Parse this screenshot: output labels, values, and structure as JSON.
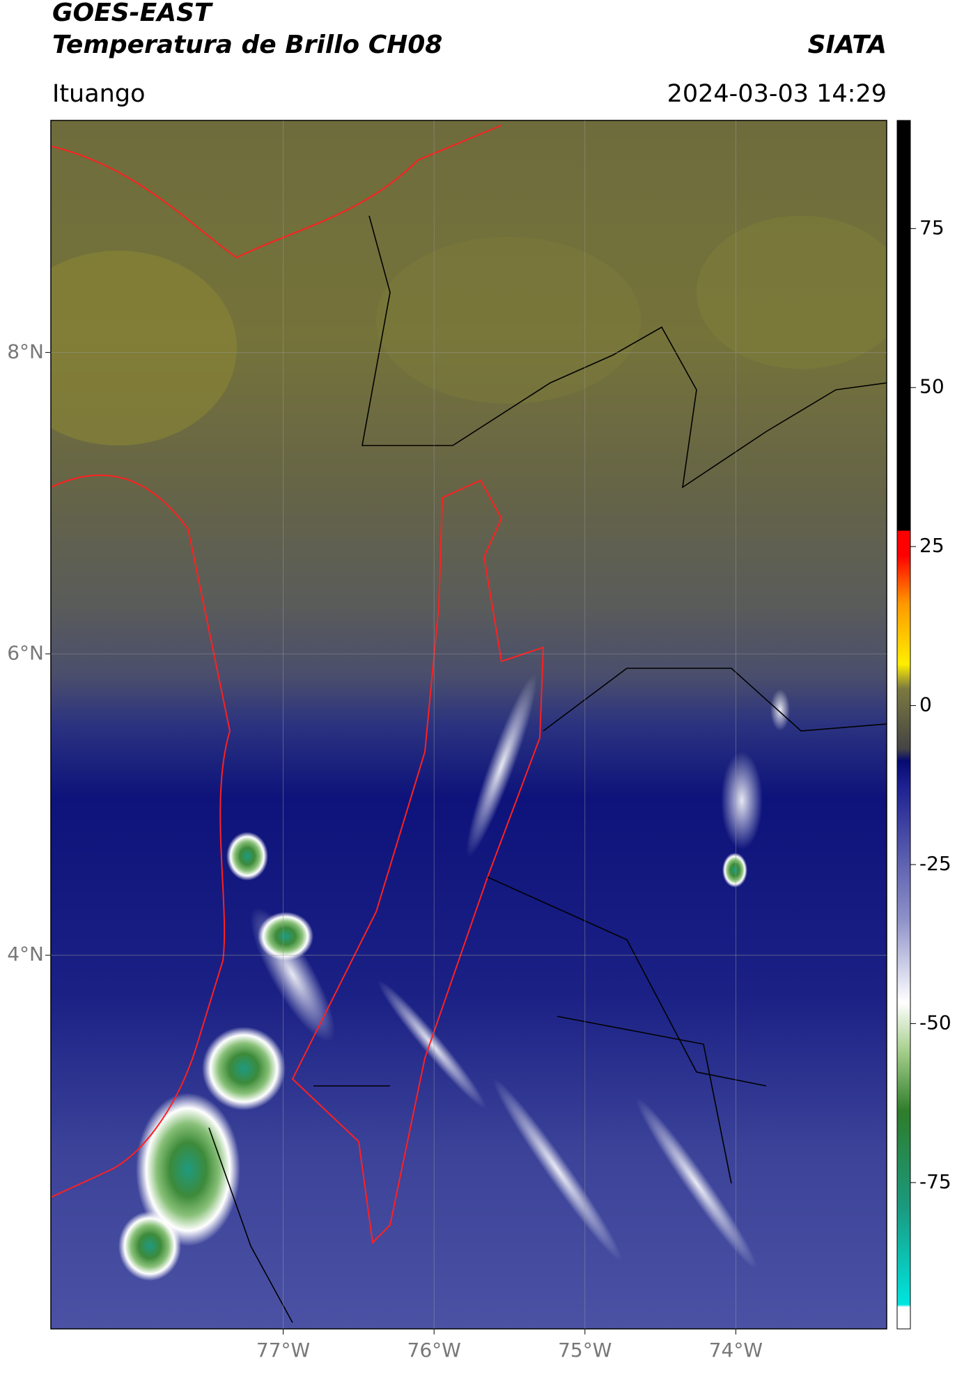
{
  "header": {
    "title": "GOES-EAST",
    "subtitle": "Temperatura de Brillo CH08",
    "source": "SIATA",
    "location": "Ituango",
    "datetime": "2024-03-03 14:29"
  },
  "chart_data": {
    "type": "map",
    "xlim": [
      -78.54,
      -73.0
    ],
    "ylim": [
      1.52,
      9.54
    ],
    "xticks": [
      {
        "value": -77,
        "label": "77°W"
      },
      {
        "value": -76,
        "label": "76°W"
      },
      {
        "value": -75,
        "label": "75°W"
      },
      {
        "value": -74,
        "label": "74°W"
      }
    ],
    "yticks": [
      {
        "value": 4,
        "label": "4°N"
      },
      {
        "value": 6,
        "label": "6°N"
      },
      {
        "value": 8,
        "label": "8°N"
      }
    ],
    "grid": true,
    "colorbar": {
      "clim": [
        -98,
        92
      ],
      "ticks": [
        -75,
        -50,
        -25,
        0,
        25,
        50,
        75
      ]
    }
  }
}
